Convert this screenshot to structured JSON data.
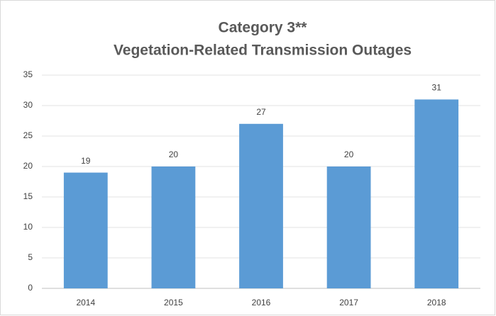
{
  "chart_data": {
    "type": "bar",
    "title": [
      "Category 3**",
      "Vegetation-Related Transmission Outages"
    ],
    "categories": [
      "2014",
      "2015",
      "2016",
      "2017",
      "2018"
    ],
    "values": [
      19,
      20,
      27,
      20,
      31
    ],
    "color": "#5b9bd5",
    "ylim": [
      0,
      35
    ],
    "yticks": [
      0,
      5,
      10,
      15,
      20,
      25,
      30,
      35
    ],
    "grid": true,
    "data_labels": true
  }
}
